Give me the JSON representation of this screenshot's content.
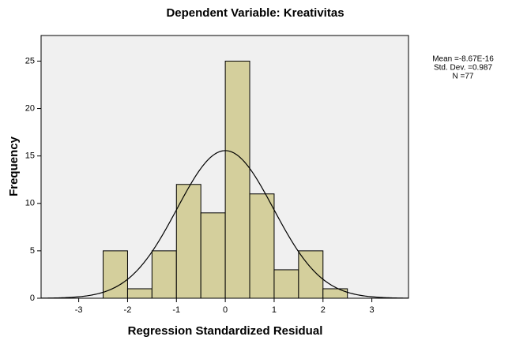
{
  "chart_data": {
    "type": "histogram",
    "title": "Dependent Variable: Kreativitas",
    "xlabel": "Regression Standardized Residual",
    "ylabel": "Frequency",
    "bins": [
      -2.5,
      -2,
      -1.5,
      -1,
      -0.5,
      0,
      0.5,
      1,
      1.5,
      2,
      2.5
    ],
    "values": [
      5,
      1,
      5,
      12,
      9,
      25,
      11,
      3,
      5,
      1
    ],
    "color": "#d4cf9c",
    "xlim": [
      -3.77,
      3.75
    ],
    "xticks": [
      -3,
      -2,
      -1,
      0,
      1,
      2,
      3
    ],
    "ylim": [
      0,
      27.7
    ],
    "yticks": [
      0,
      5,
      10,
      15,
      20,
      25
    ],
    "stats": [
      {
        "value": -8.67e-16,
        "label": "Mean =-8.67E-16"
      },
      {
        "value": 0.987,
        "label": "Std. Dev. =0.987"
      },
      {
        "value": 77,
        "label": "N =77"
      }
    ]
  }
}
